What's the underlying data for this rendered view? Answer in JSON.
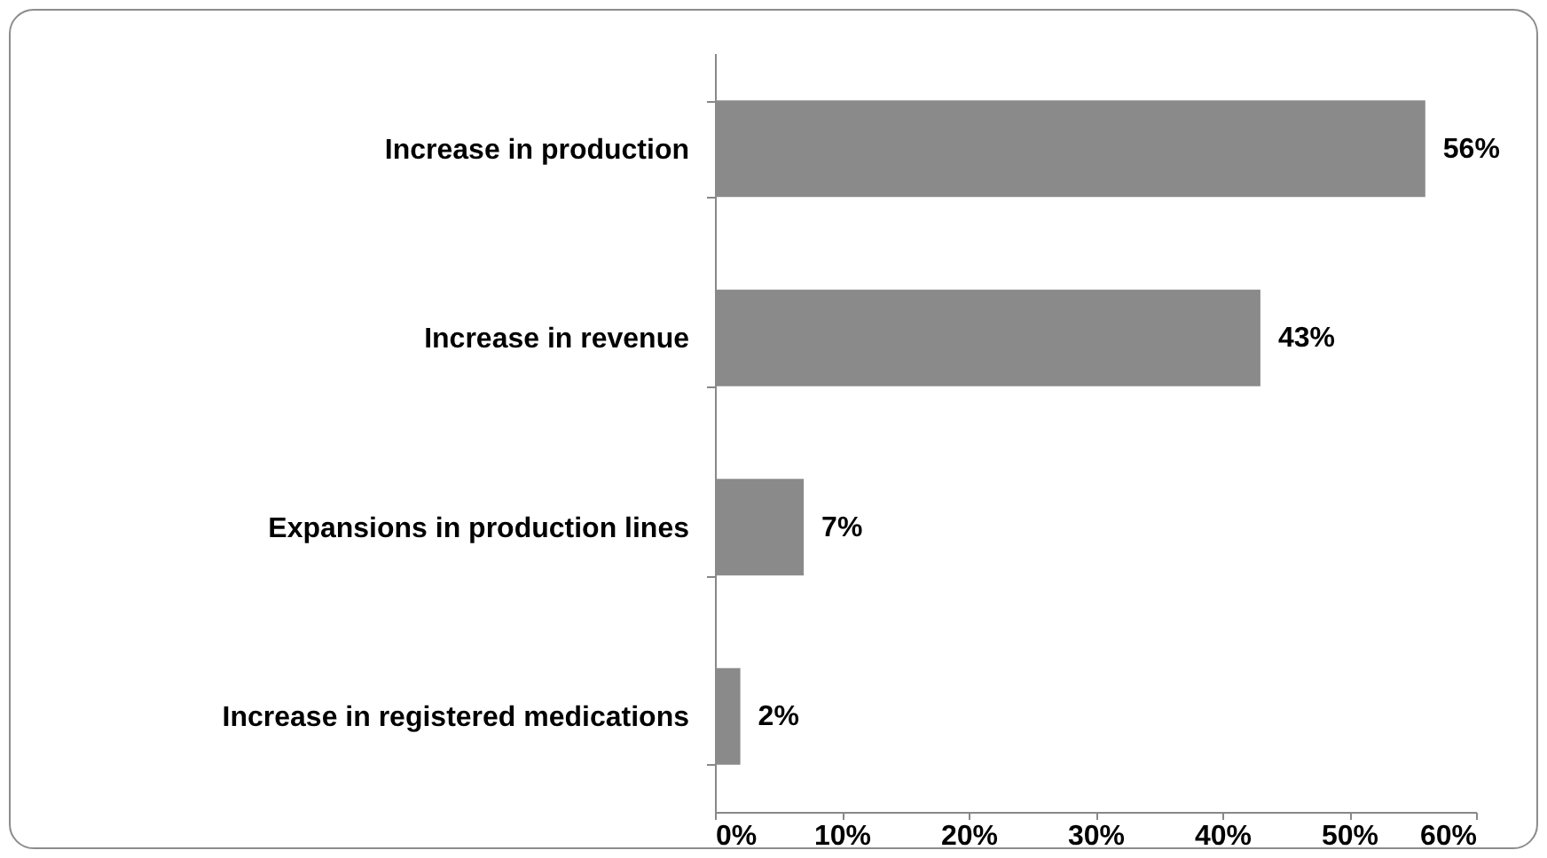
{
  "chart_data": {
    "type": "bar",
    "orientation": "horizontal",
    "categories": [
      "Increase in production",
      "Increase in revenue",
      "Expansions in production lines",
      "Increase in registered medications"
    ],
    "values": [
      56,
      43,
      7,
      2
    ],
    "value_labels": [
      "56%",
      "43%",
      "7%",
      "2%"
    ],
    "color": "#8a8a8a",
    "xlim": [
      0,
      60
    ],
    "xticks": [
      {
        "value": 0,
        "label": "0%"
      },
      {
        "value": 10,
        "label": "10%"
      },
      {
        "value": 20,
        "label": "20%"
      },
      {
        "value": 30,
        "label": "30%"
      },
      {
        "value": 40,
        "label": "40%"
      },
      {
        "value": 50,
        "label": "50%"
      },
      {
        "value": 60,
        "label": "60%"
      }
    ],
    "grid": false
  }
}
